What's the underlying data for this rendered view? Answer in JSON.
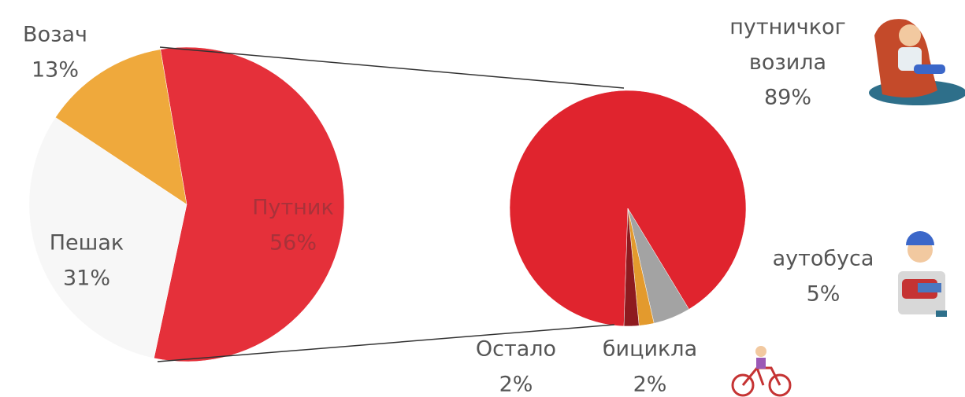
{
  "chart_data": [
    {
      "type": "pie",
      "categories": [
        "Путник",
        "Пешак",
        "Возач"
      ],
      "values": [
        56,
        31,
        13
      ],
      "value_labels": [
        "56%",
        "31%",
        "13%"
      ],
      "colors": [
        "#e5303a",
        "#f7f7f7",
        "#efa93c"
      ]
    },
    {
      "type": "pie",
      "categories": [
        "путничког возила",
        "аутобуса",
        "бицикла",
        "Остало"
      ],
      "values": [
        89,
        5,
        2,
        2
      ],
      "value_labels": [
        "89%",
        "5%",
        "2%",
        "2%"
      ],
      "colors": [
        "#e0242e",
        "#a3a3a3",
        "#e39a2d",
        "#8e1a1f"
      ]
    }
  ]
}
